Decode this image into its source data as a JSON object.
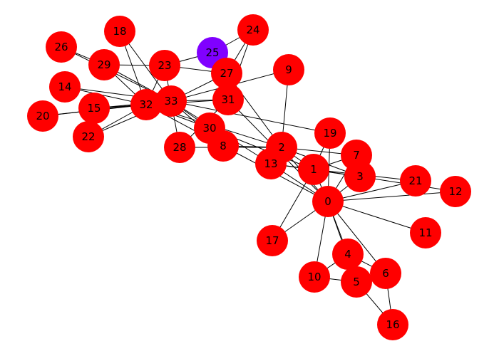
{
  "graph": {
    "node_color_default": "#ff0000",
    "edge_color": "#000000",
    "nodes": [
      {
        "id": "0",
        "color": "#ff0000"
      },
      {
        "id": "1",
        "color": "#ff0000"
      },
      {
        "id": "2",
        "color": "#ff0000"
      },
      {
        "id": "3",
        "color": "#ff0000"
      },
      {
        "id": "4",
        "color": "#ff0000"
      },
      {
        "id": "5",
        "color": "#ff0000"
      },
      {
        "id": "6",
        "color": "#ff0000"
      },
      {
        "id": "7",
        "color": "#ff0000"
      },
      {
        "id": "8",
        "color": "#ff0000"
      },
      {
        "id": "9",
        "color": "#ff0000"
      },
      {
        "id": "10",
        "color": "#ff0000"
      },
      {
        "id": "11",
        "color": "#ff0000"
      },
      {
        "id": "12",
        "color": "#ff0000"
      },
      {
        "id": "13",
        "color": "#ff0000"
      },
      {
        "id": "14",
        "color": "#ff0000"
      },
      {
        "id": "15",
        "color": "#ff0000"
      },
      {
        "id": "16",
        "color": "#ff0000"
      },
      {
        "id": "17",
        "color": "#ff0000"
      },
      {
        "id": "18",
        "color": "#ff0000"
      },
      {
        "id": "19",
        "color": "#ff0000"
      },
      {
        "id": "20",
        "color": "#ff0000"
      },
      {
        "id": "21",
        "color": "#ff0000"
      },
      {
        "id": "22",
        "color": "#ff0000"
      },
      {
        "id": "23",
        "color": "#ff0000"
      },
      {
        "id": "24",
        "color": "#ff0000"
      },
      {
        "id": "25",
        "color": "#8000ff"
      },
      {
        "id": "26",
        "color": "#ff0000"
      },
      {
        "id": "27",
        "color": "#ff0000"
      },
      {
        "id": "28",
        "color": "#ff0000"
      },
      {
        "id": "29",
        "color": "#ff0000"
      },
      {
        "id": "30",
        "color": "#ff0000"
      },
      {
        "id": "31",
        "color": "#ff0000"
      },
      {
        "id": "32",
        "color": "#ff0000"
      },
      {
        "id": "33",
        "color": "#ff0000"
      }
    ],
    "edges": [
      [
        0,
        1
      ],
      [
        0,
        2
      ],
      [
        0,
        3
      ],
      [
        0,
        4
      ],
      [
        0,
        5
      ],
      [
        0,
        6
      ],
      [
        0,
        7
      ],
      [
        0,
        8
      ],
      [
        0,
        10
      ],
      [
        0,
        11
      ],
      [
        0,
        12
      ],
      [
        0,
        13
      ],
      [
        0,
        17
      ],
      [
        0,
        19
      ],
      [
        0,
        21
      ],
      [
        0,
        31
      ],
      [
        1,
        2
      ],
      [
        1,
        3
      ],
      [
        1,
        7
      ],
      [
        1,
        13
      ],
      [
        1,
        17
      ],
      [
        1,
        19
      ],
      [
        1,
        21
      ],
      [
        1,
        30
      ],
      [
        2,
        3
      ],
      [
        2,
        7
      ],
      [
        2,
        8
      ],
      [
        2,
        9
      ],
      [
        2,
        13
      ],
      [
        2,
        27
      ],
      [
        2,
        28
      ],
      [
        2,
        32
      ],
      [
        3,
        7
      ],
      [
        3,
        12
      ],
      [
        3,
        13
      ],
      [
        4,
        6
      ],
      [
        4,
        10
      ],
      [
        5,
        6
      ],
      [
        5,
        10
      ],
      [
        5,
        16
      ],
      [
        6,
        16
      ],
      [
        8,
        30
      ],
      [
        8,
        32
      ],
      [
        8,
        33
      ],
      [
        9,
        33
      ],
      [
        13,
        33
      ],
      [
        14,
        32
      ],
      [
        14,
        33
      ],
      [
        15,
        32
      ],
      [
        15,
        33
      ],
      [
        18,
        32
      ],
      [
        18,
        33
      ],
      [
        19,
        33
      ],
      [
        20,
        32
      ],
      [
        20,
        33
      ],
      [
        22,
        32
      ],
      [
        22,
        33
      ],
      [
        23,
        25
      ],
      [
        23,
        27
      ],
      [
        23,
        29
      ],
      [
        23,
        32
      ],
      [
        23,
        33
      ],
      [
        24,
        25
      ],
      [
        24,
        27
      ],
      [
        24,
        31
      ],
      [
        25,
        31
      ],
      [
        26,
        29
      ],
      [
        26,
        33
      ],
      [
        27,
        33
      ],
      [
        28,
        31
      ],
      [
        28,
        33
      ],
      [
        29,
        32
      ],
      [
        29,
        33
      ],
      [
        30,
        32
      ],
      [
        30,
        33
      ],
      [
        31,
        32
      ],
      [
        31,
        33
      ],
      [
        32,
        33
      ]
    ]
  }
}
